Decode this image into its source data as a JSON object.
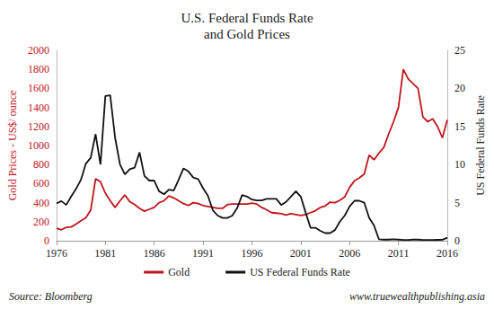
{
  "chart_data": {
    "type": "line",
    "title": "U.S. Federal Funds Rate\nand Gold Prices",
    "ylabel": "Gold Prices - US$/ ounce",
    "y2label": "US Federal Funds Rate",
    "annotations": [
      "Source: Bloomberg",
      "www.truewealthpublishing.asia"
    ],
    "legend": "bottom",
    "grid": false,
    "xlim": [
      1976,
      2016
    ],
    "xticks": [
      1976,
      1981,
      1986,
      1991,
      1996,
      2001,
      2006,
      2011,
      2016
    ],
    "ylim": [
      0,
      2000
    ],
    "yticks": [
      0,
      200,
      400,
      600,
      800,
      1000,
      1200,
      1400,
      1600,
      1800,
      2000
    ],
    "y2lim": [
      0,
      25
    ],
    "y2ticks": [
      0,
      5,
      10,
      15,
      20,
      25
    ],
    "x": [
      1976,
      1976.5,
      1977,
      1977.5,
      1978,
      1978.5,
      1979,
      1979.5,
      1980,
      1980.5,
      1981,
      1981.5,
      1982,
      1982.5,
      1983,
      1983.5,
      1984,
      1984.5,
      1985,
      1985.5,
      1986,
      1986.5,
      1987,
      1987.5,
      1988,
      1988.5,
      1989,
      1989.5,
      1990,
      1990.5,
      1991,
      1991.5,
      1992,
      1992.5,
      1993,
      1993.5,
      1994,
      1994.5,
      1995,
      1995.5,
      1996,
      1996.5,
      1997,
      1997.5,
      1998,
      1998.5,
      1999,
      1999.5,
      2000,
      2000.5,
      2001,
      2001.5,
      2002,
      2002.5,
      2003,
      2003.5,
      2004,
      2004.5,
      2005,
      2005.5,
      2006,
      2006.5,
      2007,
      2007.5,
      2008,
      2008.5,
      2009,
      2009.5,
      2010,
      2010.5,
      2011,
      2011.5,
      2012,
      2012.5,
      2013,
      2013.5,
      2014,
      2014.5,
      2015,
      2015.5,
      2016
    ],
    "series": [
      {
        "name": "Gold",
        "color": "#c0141c",
        "axis": "y",
        "values": [
          130,
          115,
          140,
          145,
          175,
          210,
          240,
          320,
          650,
          620,
          500,
          420,
          350,
          420,
          480,
          410,
          380,
          340,
          310,
          330,
          350,
          400,
          420,
          470,
          450,
          420,
          390,
          370,
          400,
          390,
          370,
          360,
          350,
          340,
          340,
          380,
          385,
          385,
          385,
          385,
          395,
          385,
          350,
          325,
          295,
          290,
          285,
          270,
          285,
          275,
          265,
          275,
          295,
          315,
          350,
          365,
          405,
          400,
          425,
          460,
          560,
          630,
          660,
          700,
          900,
          850,
          920,
          980,
          1120,
          1250,
          1400,
          1800,
          1700,
          1650,
          1600,
          1300,
          1250,
          1280,
          1200,
          1080,
          1270
        ]
      },
      {
        "name": "US Federal Funds Rate",
        "color": "#111111",
        "axis": "y2",
        "values": [
          4.9,
          5.2,
          4.7,
          5.8,
          6.8,
          8.0,
          10.1,
          10.9,
          14.0,
          10.0,
          19.0,
          19.1,
          13.5,
          10.0,
          8.7,
          9.4,
          9.6,
          11.6,
          8.5,
          7.9,
          7.9,
          6.5,
          6.1,
          6.7,
          6.6,
          8.0,
          9.5,
          9.1,
          8.3,
          8.1,
          6.9,
          5.9,
          4.0,
          3.3,
          3.0,
          3.0,
          3.3,
          4.3,
          6.0,
          5.8,
          5.4,
          5.3,
          5.3,
          5.5,
          5.5,
          5.5,
          4.7,
          5.1,
          5.8,
          6.5,
          5.8,
          3.7,
          1.7,
          1.7,
          1.3,
          1.0,
          1.0,
          1.4,
          2.5,
          3.3,
          4.5,
          5.25,
          5.25,
          5.0,
          3.0,
          2.0,
          0.2,
          0.15,
          0.15,
          0.18,
          0.15,
          0.1,
          0.1,
          0.15,
          0.15,
          0.1,
          0.1,
          0.1,
          0.12,
          0.13,
          0.4
        ]
      }
    ]
  }
}
